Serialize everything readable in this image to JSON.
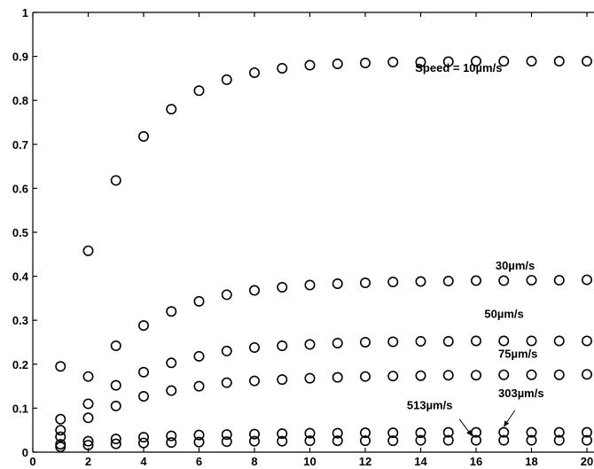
{
  "chart_data": {
    "type": "scatter",
    "title": "",
    "xlabel": "",
    "ylabel": "",
    "xlim": [
      0,
      20
    ],
    "ylim": [
      0,
      1
    ],
    "xticks": [
      0,
      2,
      4,
      6,
      8,
      10,
      12,
      14,
      16,
      18,
      20
    ],
    "yticks": [
      0,
      0.1,
      0.2,
      0.3,
      0.4,
      0.5,
      0.6,
      0.7,
      0.8,
      0.9,
      1
    ],
    "ytick_labels": [
      "0",
      "0.1",
      "0.2",
      "0.3",
      "0.4",
      "0.5",
      "0.6",
      "0.7",
      "0.8",
      "0.9",
      "1"
    ],
    "grid": false,
    "marker": "circle-open",
    "x": [
      1,
      2,
      3,
      4,
      5,
      6,
      7,
      8,
      9,
      10,
      11,
      12,
      13,
      14,
      15,
      16,
      17,
      18,
      19,
      20
    ],
    "series": [
      {
        "name": "Speed = 10µm/s",
        "values": [
          0.195,
          0.458,
          0.618,
          0.718,
          0.78,
          0.822,
          0.847,
          0.863,
          0.873,
          0.88,
          0.883,
          0.885,
          0.887,
          0.887,
          0.888,
          0.889,
          0.889,
          0.889,
          0.889,
          0.889
        ]
      },
      {
        "name": "30µm/s",
        "values": [
          0.075,
          0.172,
          0.242,
          0.288,
          0.32,
          0.343,
          0.358,
          0.368,
          0.375,
          0.38,
          0.383,
          0.385,
          0.387,
          0.388,
          0.389,
          0.39,
          0.39,
          0.391,
          0.391,
          0.392
        ]
      },
      {
        "name": "50µm/s",
        "values": [
          0.05,
          0.11,
          0.152,
          0.182,
          0.203,
          0.218,
          0.23,
          0.238,
          0.242,
          0.245,
          0.248,
          0.25,
          0.251,
          0.252,
          0.252,
          0.253,
          0.253,
          0.253,
          0.253,
          0.253
        ]
      },
      {
        "name": "75µm/s",
        "values": [
          0.035,
          0.078,
          0.105,
          0.127,
          0.14,
          0.15,
          0.158,
          0.162,
          0.165,
          0.168,
          0.17,
          0.172,
          0.173,
          0.174,
          0.175,
          0.175,
          0.176,
          0.176,
          0.176,
          0.177
        ]
      },
      {
        "name": "303µm/s",
        "values": [
          0.018,
          0.025,
          0.03,
          0.034,
          0.037,
          0.039,
          0.04,
          0.041,
          0.042,
          0.043,
          0.043,
          0.044,
          0.044,
          0.044,
          0.045,
          0.045,
          0.045,
          0.045,
          0.045,
          0.045
        ]
      },
      {
        "name": "513µm/s",
        "values": [
          0.012,
          0.016,
          0.019,
          0.021,
          0.022,
          0.023,
          0.024,
          0.025,
          0.025,
          0.026,
          0.026,
          0.026,
          0.026,
          0.027,
          0.027,
          0.027,
          0.027,
          0.027,
          0.027,
          0.027
        ]
      }
    ],
    "annotations": [
      {
        "text": "Speed = 10µm/s",
        "x": 13.8,
        "y": 0.865
      },
      {
        "text": "30µm/s",
        "x": 16.7,
        "y": 0.415
      },
      {
        "text": "50µm/s",
        "x": 16.3,
        "y": 0.305
      },
      {
        "text": "75µm/s",
        "x": 16.8,
        "y": 0.215
      },
      {
        "text": "303µm/s",
        "x": 16.8,
        "y": 0.125
      },
      {
        "text": "513µm/s",
        "x": 13.5,
        "y": 0.098
      }
    ],
    "arrows": [
      {
        "label": "513µm/s",
        "from": [
          15.4,
          0.075
        ],
        "to": [
          15.85,
          0.037
        ]
      },
      {
        "label": "303µm/s",
        "from": [
          17.4,
          0.095
        ],
        "to": [
          17.0,
          0.058
        ]
      }
    ]
  }
}
